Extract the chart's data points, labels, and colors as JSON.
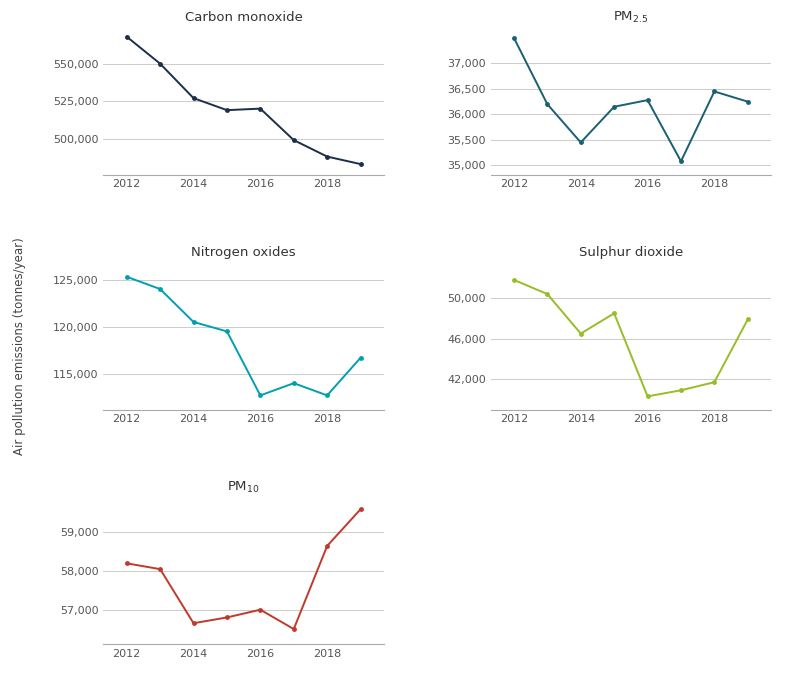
{
  "years": [
    2012,
    2013,
    2014,
    2015,
    2016,
    2017,
    2018,
    2019
  ],
  "carbon_monoxide": {
    "title": "Carbon monoxide",
    "color": "#1b2f4b",
    "values": [
      568000,
      550000,
      527000,
      519000,
      520000,
      499000,
      488000,
      483000
    ],
    "yticks": [
      500000,
      525000,
      550000
    ],
    "ylim": [
      476000,
      574000
    ]
  },
  "pm25": {
    "title": "PM$_{2.5}$",
    "color": "#1a5f74",
    "values": [
      37500,
      36200,
      35450,
      36150,
      36280,
      35080,
      36450,
      36250
    ],
    "yticks": [
      35000,
      35500,
      36000,
      36500,
      37000
    ],
    "ylim": [
      34820,
      37700
    ]
  },
  "nox": {
    "title": "Nitrogen oxides",
    "color": "#00a0b0",
    "values": [
      125300,
      124000,
      120500,
      119500,
      112700,
      114000,
      112700,
      116700
    ],
    "yticks": [
      115000,
      120000,
      125000
    ],
    "ylim": [
      111200,
      126800
    ]
  },
  "so2": {
    "title": "Sulphur dioxide",
    "color": "#96be25",
    "values": [
      51800,
      50400,
      46500,
      48500,
      40300,
      40900,
      41700,
      47900
    ],
    "yticks": [
      42000,
      46000,
      50000
    ],
    "ylim": [
      39000,
      53500
    ]
  },
  "pm10": {
    "title": "PM$_{10}$",
    "color": "#c0392b",
    "values": [
      58200,
      58050,
      56650,
      56800,
      57000,
      56500,
      58650,
      59600
    ],
    "yticks": [
      57000,
      58000,
      59000
    ],
    "ylim": [
      56100,
      59900
    ]
  },
  "ylabel": "Air pollution emissions (tonnes/year)",
  "background_color": "#ffffff",
  "grid_color": "#cccccc"
}
